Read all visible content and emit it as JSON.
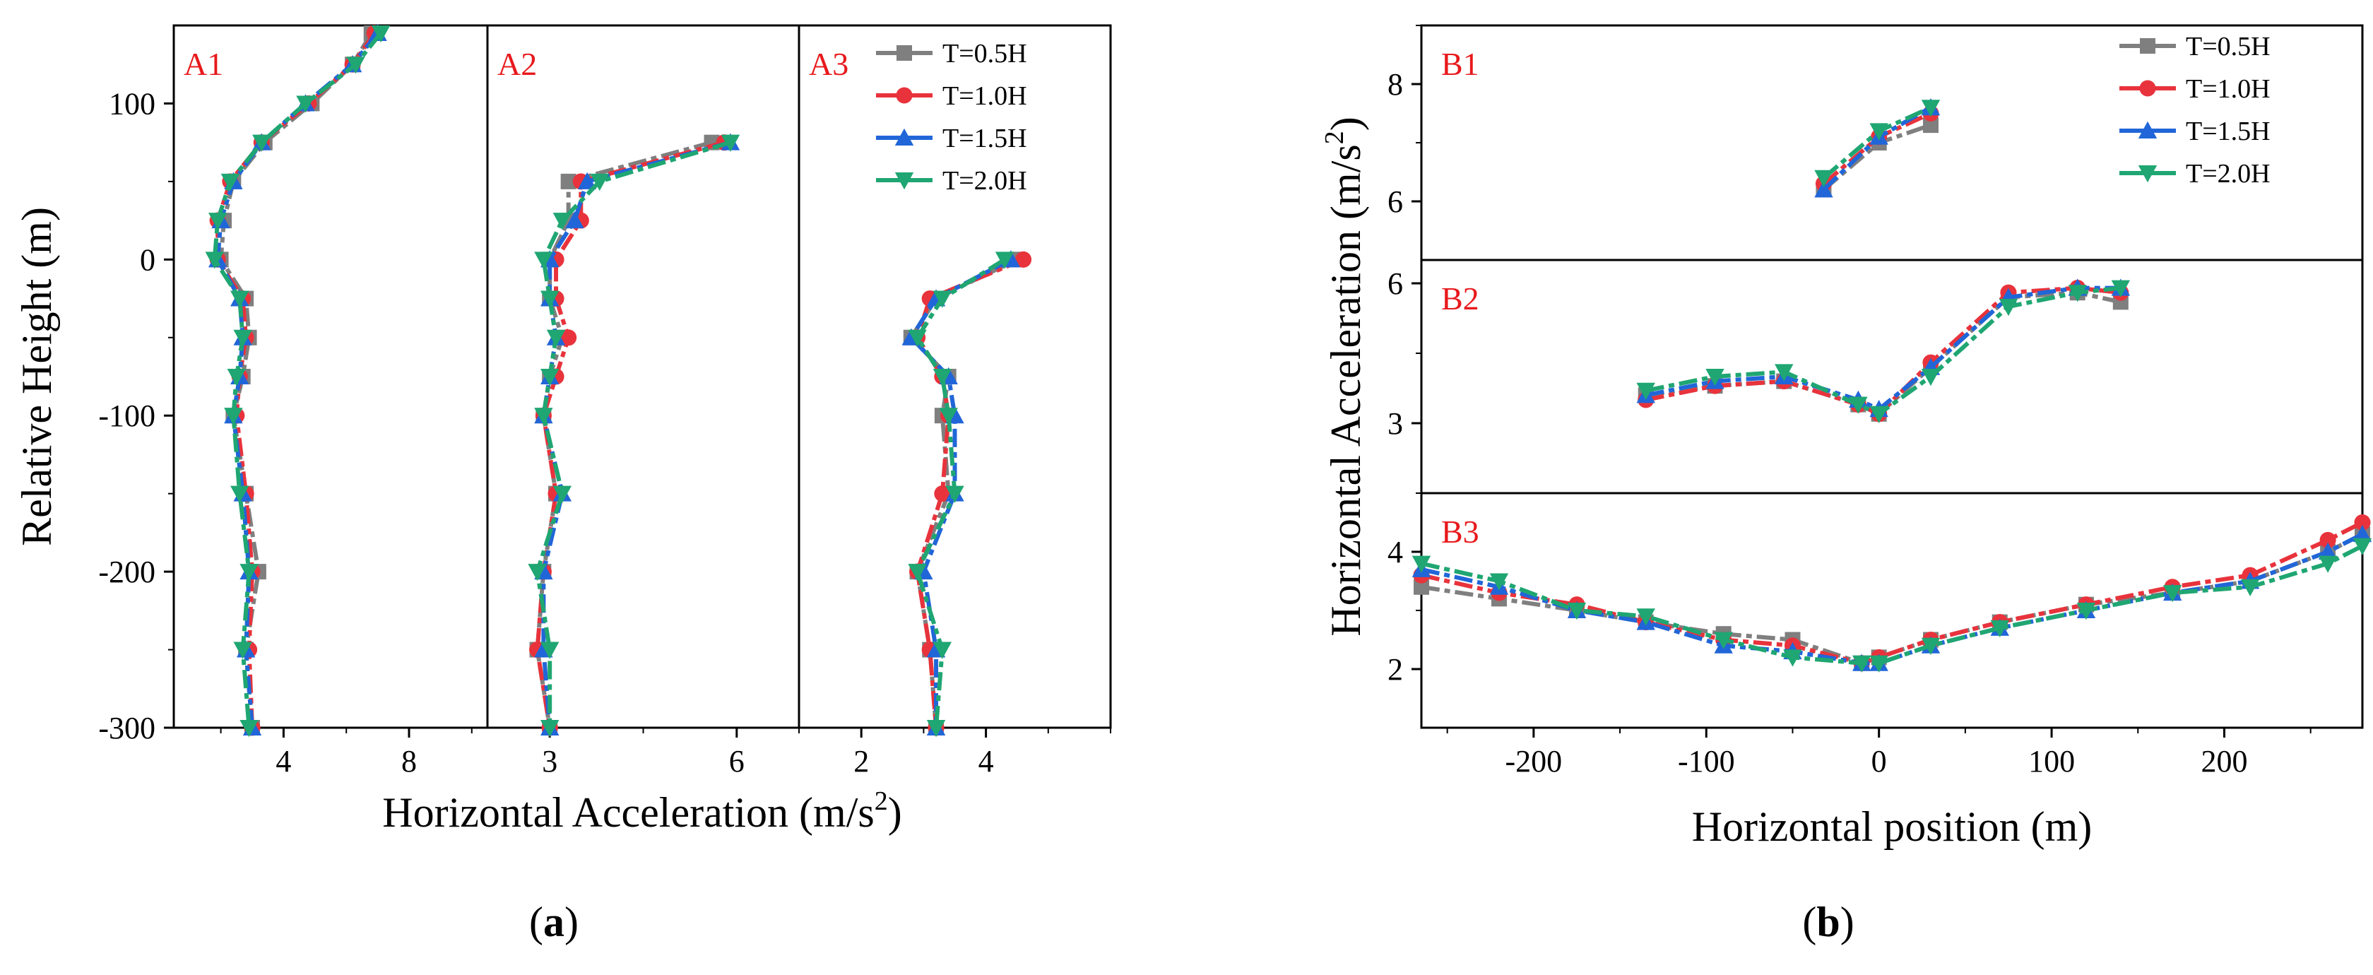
{
  "legend": [
    "T=0.5H",
    "T=1.0H",
    "T=1.5H",
    "T=2.0H"
  ],
  "series_colors": [
    "#7f7f7f",
    "#e8333c",
    "#2166d8",
    "#1fa672"
  ],
  "captions": {
    "a_open": "(",
    "a_letter": "a",
    "a_close": ")",
    "b_open": "(",
    "b_letter": "b",
    "b_close": ")"
  },
  "chart_data": [
    {
      "id": "A",
      "type": "line",
      "orientation": "vertical-profile",
      "ylabel": "Relative Height (m)",
      "xlabel": "Horizontal Acceleration (m/s",
      "xlabel_sup": "2",
      "xlabel_end": ")",
      "ylim": [
        -300,
        150
      ],
      "yticks": [
        -300,
        -200,
        -100,
        0,
        100
      ],
      "panels": [
        {
          "label": "A1",
          "xlim": [
            0.5,
            10.5
          ],
          "xticks": [
            4,
            8
          ],
          "y": [
            145,
            125,
            100,
            75,
            50,
            25,
            0,
            -25,
            -50,
            -75,
            -100,
            -150,
            -200,
            -250,
            -300
          ],
          "series": [
            {
              "name": "T=0.5H",
              "values": [
                6.8,
                6.2,
                4.9,
                3.4,
                2.4,
                2.1,
                2.0,
                2.8,
                2.9,
                2.7,
                2.4,
                2.8,
                3.2,
                2.8,
                3.0
              ]
            },
            {
              "name": "T=1.0H",
              "values": [
                6.9,
                6.2,
                4.8,
                3.3,
                2.3,
                1.9,
                1.9,
                2.7,
                2.8,
                2.6,
                2.5,
                2.8,
                3.0,
                2.9,
                3.0
              ]
            },
            {
              "name": "T=1.5H",
              "values": [
                7.0,
                6.2,
                4.7,
                3.3,
                2.4,
                2.0,
                1.9,
                2.6,
                2.7,
                2.6,
                2.4,
                2.7,
                2.9,
                2.8,
                3.0
              ]
            },
            {
              "name": "T=2.0H",
              "values": [
                7.1,
                6.3,
                4.7,
                3.3,
                2.3,
                1.9,
                1.8,
                2.6,
                2.7,
                2.5,
                2.4,
                2.6,
                2.9,
                2.7,
                2.9
              ]
            }
          ]
        },
        {
          "label": "A2",
          "xlim": [
            2.0,
            7.0
          ],
          "xticks": [
            3,
            6
          ],
          "y": [
            75,
            50,
            25,
            0,
            -25,
            -50,
            -75,
            -100,
            -150,
            -200,
            -250,
            -300
          ],
          "series": [
            {
              "name": "T=0.5H",
              "values": [
                5.6,
                3.3,
                3.3,
                3.0,
                3.0,
                3.2,
                3.0,
                2.9,
                3.1,
                2.9,
                2.8,
                3.0
              ]
            },
            {
              "name": "T=1.0H",
              "values": [
                5.8,
                3.5,
                3.5,
                3.1,
                3.1,
                3.3,
                3.1,
                2.9,
                3.1,
                2.9,
                2.8,
                3.0
              ]
            },
            {
              "name": "T=1.5H",
              "values": [
                5.9,
                3.6,
                3.4,
                3.0,
                3.0,
                3.1,
                3.0,
                2.9,
                3.2,
                2.9,
                2.9,
                3.0
              ]
            },
            {
              "name": "T=2.0H",
              "values": [
                5.9,
                3.8,
                3.2,
                2.9,
                3.0,
                3.1,
                3.0,
                2.9,
                3.2,
                2.8,
                3.0,
                3.0
              ]
            }
          ]
        },
        {
          "label": "A3",
          "xlim": [
            1.0,
            6.0
          ],
          "xticks": [
            2,
            4
          ],
          "y": [
            0,
            -25,
            -50,
            -75,
            -100,
            -150,
            -200,
            -250,
            -300
          ],
          "series": [
            {
              "name": "T=0.5H",
              "values": [
                4.5,
                3.2,
                2.8,
                3.4,
                3.3,
                3.4,
                2.9,
                3.1,
                3.2
              ]
            },
            {
              "name": "T=1.0H",
              "values": [
                4.6,
                3.1,
                2.9,
                3.3,
                3.4,
                3.3,
                2.9,
                3.1,
                3.2
              ]
            },
            {
              "name": "T=1.5H",
              "values": [
                4.4,
                3.2,
                2.8,
                3.4,
                3.5,
                3.5,
                3.0,
                3.2,
                3.2
              ]
            },
            {
              "name": "T=2.0H",
              "values": [
                4.3,
                3.3,
                2.9,
                3.3,
                3.4,
                3.5,
                2.9,
                3.3,
                3.2
              ]
            }
          ]
        }
      ]
    },
    {
      "id": "B",
      "type": "line",
      "ylabel": "Horizontal Acceleration (m/s",
      "ylabel_sup": "2",
      "ylabel_end": ")",
      "xlabel": "Horizontal position (m)",
      "xlim": [
        -265,
        280
      ],
      "xticks": [
        -200,
        -100,
        0,
        100,
        200
      ],
      "panels": [
        {
          "label": "B1",
          "ylim": [
            5.0,
            9.0
          ],
          "yticks": [
            6,
            8
          ],
          "x": [
            -32,
            0,
            30
          ],
          "series": [
            {
              "name": "T=0.5H",
              "values": [
                6.2,
                7.0,
                7.3
              ]
            },
            {
              "name": "T=1.0H",
              "values": [
                6.3,
                7.1,
                7.5
              ]
            },
            {
              "name": "T=1.5H",
              "values": [
                6.2,
                7.1,
                7.6
              ]
            },
            {
              "name": "T=2.0H",
              "values": [
                6.4,
                7.2,
                7.6
              ]
            }
          ]
        },
        {
          "label": "B2",
          "ylim": [
            1.5,
            6.5
          ],
          "yticks": [
            3,
            6
          ],
          "x": [
            -135,
            -95,
            -55,
            -12,
            0,
            30,
            75,
            115,
            140
          ],
          "series": [
            {
              "name": "T=0.5H",
              "values": [
                3.6,
                3.8,
                3.9,
                3.4,
                3.2,
                4.2,
                5.7,
                5.8,
                5.6
              ]
            },
            {
              "name": "T=1.0H",
              "values": [
                3.5,
                3.8,
                3.9,
                3.4,
                3.2,
                4.3,
                5.8,
                5.9,
                5.8
              ]
            },
            {
              "name": "T=1.5H",
              "values": [
                3.6,
                3.9,
                4.0,
                3.5,
                3.3,
                4.2,
                5.7,
                5.9,
                5.9
              ]
            },
            {
              "name": "T=2.0H",
              "values": [
                3.7,
                4.0,
                4.1,
                3.4,
                3.2,
                4.0,
                5.5,
                5.8,
                5.9
              ]
            }
          ]
        },
        {
          "label": "B3",
          "ylim": [
            1.0,
            5.0
          ],
          "yticks": [
            2,
            4
          ],
          "x": [
            -265,
            -220,
            -175,
            -135,
            -90,
            -50,
            -10,
            0,
            30,
            70,
            120,
            170,
            215,
            260,
            280
          ],
          "series": [
            {
              "name": "T=0.5H",
              "values": [
                3.4,
                3.2,
                3.0,
                2.8,
                2.6,
                2.5,
                2.1,
                2.2,
                2.5,
                2.8,
                3.1,
                3.3,
                3.5,
                4.0,
                4.3
              ]
            },
            {
              "name": "T=1.0H",
              "values": [
                3.6,
                3.3,
                3.1,
                2.8,
                2.5,
                2.4,
                2.1,
                2.2,
                2.5,
                2.8,
                3.1,
                3.4,
                3.6,
                4.2,
                4.5
              ]
            },
            {
              "name": "T=1.5H",
              "values": [
                3.7,
                3.4,
                3.0,
                2.8,
                2.4,
                2.3,
                2.1,
                2.1,
                2.4,
                2.7,
                3.0,
                3.3,
                3.5,
                4.0,
                4.3
              ]
            },
            {
              "name": "T=2.0H",
              "values": [
                3.8,
                3.5,
                3.0,
                2.9,
                2.5,
                2.2,
                2.1,
                2.1,
                2.4,
                2.7,
                3.0,
                3.3,
                3.4,
                3.8,
                4.1
              ]
            }
          ]
        }
      ]
    }
  ]
}
